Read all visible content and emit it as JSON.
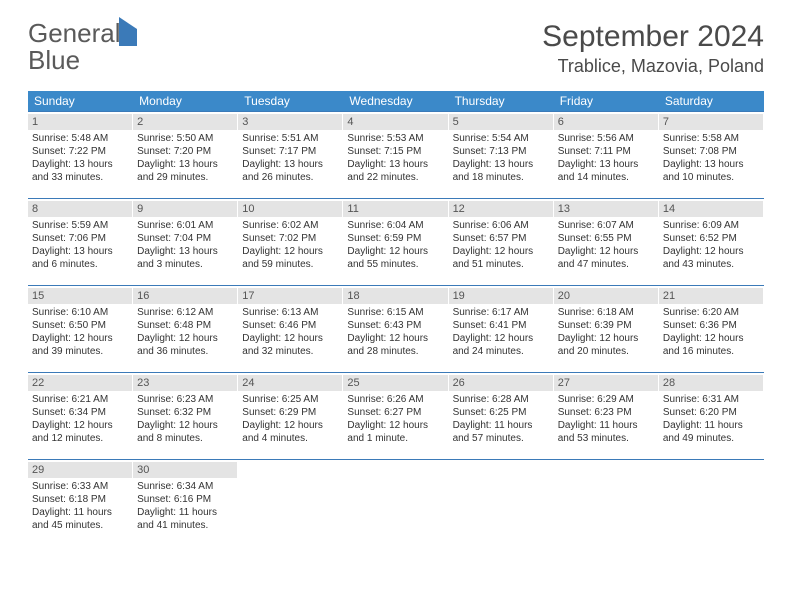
{
  "logo": {
    "line1": "General",
    "line2": "Blue"
  },
  "title": "September 2024",
  "location": "Trablice, Mazovia, Poland",
  "colors": {
    "header_bg": "#3b89c9",
    "header_text": "#ffffff",
    "daynum_bg": "#e4e4e4",
    "rule": "#3b7ab8",
    "text": "#333333",
    "logo_gray": "#5a5a5a",
    "logo_blue": "#3b7ab8"
  },
  "typography": {
    "title_fontsize": 30,
    "location_fontsize": 18,
    "dow_fontsize": 12,
    "body_fontsize": 10
  },
  "days_of_week": [
    "Sunday",
    "Monday",
    "Tuesday",
    "Wednesday",
    "Thursday",
    "Friday",
    "Saturday"
  ],
  "weeks": [
    [
      {
        "num": "1",
        "sunrise": "Sunrise: 5:48 AM",
        "sunset": "Sunset: 7:22 PM",
        "day1": "Daylight: 13 hours",
        "day2": "and 33 minutes."
      },
      {
        "num": "2",
        "sunrise": "Sunrise: 5:50 AM",
        "sunset": "Sunset: 7:20 PM",
        "day1": "Daylight: 13 hours",
        "day2": "and 29 minutes."
      },
      {
        "num": "3",
        "sunrise": "Sunrise: 5:51 AM",
        "sunset": "Sunset: 7:17 PM",
        "day1": "Daylight: 13 hours",
        "day2": "and 26 minutes."
      },
      {
        "num": "4",
        "sunrise": "Sunrise: 5:53 AM",
        "sunset": "Sunset: 7:15 PM",
        "day1": "Daylight: 13 hours",
        "day2": "and 22 minutes."
      },
      {
        "num": "5",
        "sunrise": "Sunrise: 5:54 AM",
        "sunset": "Sunset: 7:13 PM",
        "day1": "Daylight: 13 hours",
        "day2": "and 18 minutes."
      },
      {
        "num": "6",
        "sunrise": "Sunrise: 5:56 AM",
        "sunset": "Sunset: 7:11 PM",
        "day1": "Daylight: 13 hours",
        "day2": "and 14 minutes."
      },
      {
        "num": "7",
        "sunrise": "Sunrise: 5:58 AM",
        "sunset": "Sunset: 7:08 PM",
        "day1": "Daylight: 13 hours",
        "day2": "and 10 minutes."
      }
    ],
    [
      {
        "num": "8",
        "sunrise": "Sunrise: 5:59 AM",
        "sunset": "Sunset: 7:06 PM",
        "day1": "Daylight: 13 hours",
        "day2": "and 6 minutes."
      },
      {
        "num": "9",
        "sunrise": "Sunrise: 6:01 AM",
        "sunset": "Sunset: 7:04 PM",
        "day1": "Daylight: 13 hours",
        "day2": "and 3 minutes."
      },
      {
        "num": "10",
        "sunrise": "Sunrise: 6:02 AM",
        "sunset": "Sunset: 7:02 PM",
        "day1": "Daylight: 12 hours",
        "day2": "and 59 minutes."
      },
      {
        "num": "11",
        "sunrise": "Sunrise: 6:04 AM",
        "sunset": "Sunset: 6:59 PM",
        "day1": "Daylight: 12 hours",
        "day2": "and 55 minutes."
      },
      {
        "num": "12",
        "sunrise": "Sunrise: 6:06 AM",
        "sunset": "Sunset: 6:57 PM",
        "day1": "Daylight: 12 hours",
        "day2": "and 51 minutes."
      },
      {
        "num": "13",
        "sunrise": "Sunrise: 6:07 AM",
        "sunset": "Sunset: 6:55 PM",
        "day1": "Daylight: 12 hours",
        "day2": "and 47 minutes."
      },
      {
        "num": "14",
        "sunrise": "Sunrise: 6:09 AM",
        "sunset": "Sunset: 6:52 PM",
        "day1": "Daylight: 12 hours",
        "day2": "and 43 minutes."
      }
    ],
    [
      {
        "num": "15",
        "sunrise": "Sunrise: 6:10 AM",
        "sunset": "Sunset: 6:50 PM",
        "day1": "Daylight: 12 hours",
        "day2": "and 39 minutes."
      },
      {
        "num": "16",
        "sunrise": "Sunrise: 6:12 AM",
        "sunset": "Sunset: 6:48 PM",
        "day1": "Daylight: 12 hours",
        "day2": "and 36 minutes."
      },
      {
        "num": "17",
        "sunrise": "Sunrise: 6:13 AM",
        "sunset": "Sunset: 6:46 PM",
        "day1": "Daylight: 12 hours",
        "day2": "and 32 minutes."
      },
      {
        "num": "18",
        "sunrise": "Sunrise: 6:15 AM",
        "sunset": "Sunset: 6:43 PM",
        "day1": "Daylight: 12 hours",
        "day2": "and 28 minutes."
      },
      {
        "num": "19",
        "sunrise": "Sunrise: 6:17 AM",
        "sunset": "Sunset: 6:41 PM",
        "day1": "Daylight: 12 hours",
        "day2": "and 24 minutes."
      },
      {
        "num": "20",
        "sunrise": "Sunrise: 6:18 AM",
        "sunset": "Sunset: 6:39 PM",
        "day1": "Daylight: 12 hours",
        "day2": "and 20 minutes."
      },
      {
        "num": "21",
        "sunrise": "Sunrise: 6:20 AM",
        "sunset": "Sunset: 6:36 PM",
        "day1": "Daylight: 12 hours",
        "day2": "and 16 minutes."
      }
    ],
    [
      {
        "num": "22",
        "sunrise": "Sunrise: 6:21 AM",
        "sunset": "Sunset: 6:34 PM",
        "day1": "Daylight: 12 hours",
        "day2": "and 12 minutes."
      },
      {
        "num": "23",
        "sunrise": "Sunrise: 6:23 AM",
        "sunset": "Sunset: 6:32 PM",
        "day1": "Daylight: 12 hours",
        "day2": "and 8 minutes."
      },
      {
        "num": "24",
        "sunrise": "Sunrise: 6:25 AM",
        "sunset": "Sunset: 6:29 PM",
        "day1": "Daylight: 12 hours",
        "day2": "and 4 minutes."
      },
      {
        "num": "25",
        "sunrise": "Sunrise: 6:26 AM",
        "sunset": "Sunset: 6:27 PM",
        "day1": "Daylight: 12 hours",
        "day2": "and 1 minute."
      },
      {
        "num": "26",
        "sunrise": "Sunrise: 6:28 AM",
        "sunset": "Sunset: 6:25 PM",
        "day1": "Daylight: 11 hours",
        "day2": "and 57 minutes."
      },
      {
        "num": "27",
        "sunrise": "Sunrise: 6:29 AM",
        "sunset": "Sunset: 6:23 PM",
        "day1": "Daylight: 11 hours",
        "day2": "and 53 minutes."
      },
      {
        "num": "28",
        "sunrise": "Sunrise: 6:31 AM",
        "sunset": "Sunset: 6:20 PM",
        "day1": "Daylight: 11 hours",
        "day2": "and 49 minutes."
      }
    ],
    [
      {
        "num": "29",
        "sunrise": "Sunrise: 6:33 AM",
        "sunset": "Sunset: 6:18 PM",
        "day1": "Daylight: 11 hours",
        "day2": "and 45 minutes."
      },
      {
        "num": "30",
        "sunrise": "Sunrise: 6:34 AM",
        "sunset": "Sunset: 6:16 PM",
        "day1": "Daylight: 11 hours",
        "day2": "and 41 minutes."
      },
      {
        "empty": true
      },
      {
        "empty": true
      },
      {
        "empty": true
      },
      {
        "empty": true
      },
      {
        "empty": true
      }
    ]
  ]
}
